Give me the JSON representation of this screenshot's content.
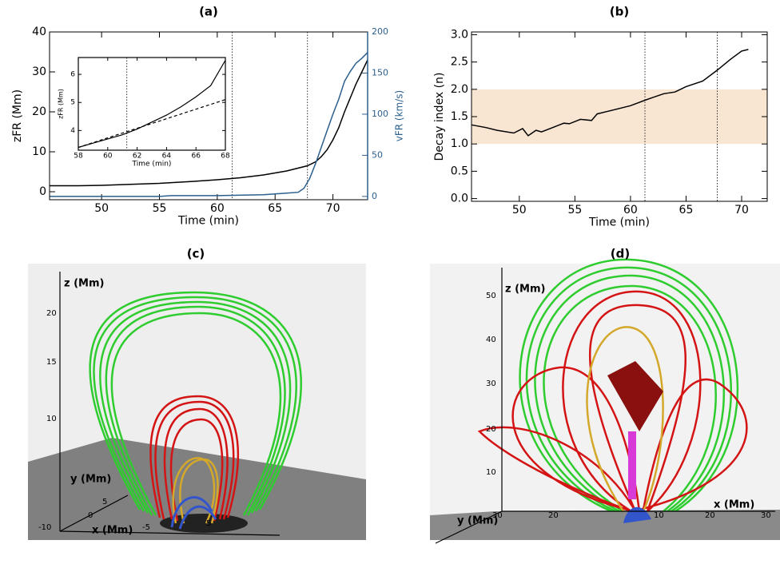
{
  "chart_data": [
    {
      "type": "line",
      "title": "(a)",
      "xlabel": "Time (min)",
      "ylabel": "zFR (Mm)",
      "y2label": "vFR (km/s)",
      "y2color": "#2b5f8e",
      "xlim": [
        45.5,
        73
      ],
      "ylim": [
        -2,
        40
      ],
      "y2lim": [
        -4,
        200
      ],
      "xticks": [
        50,
        55,
        60,
        65,
        70
      ],
      "yticks": [
        0,
        10,
        20,
        30,
        40
      ],
      "y2ticks": [
        0,
        50,
        100,
        150,
        200
      ],
      "vlines": [
        61.3,
        67.8
      ],
      "series": [
        {
          "color": "#000000",
          "x": [
            45.5,
            48,
            50,
            52,
            55,
            58,
            60,
            62,
            64,
            66,
            67.8,
            68.5,
            69,
            69.5,
            70,
            70.5,
            71,
            71.5,
            72,
            72.5,
            73
          ],
          "values": [
            1.5,
            1.5,
            1.6,
            1.8,
            2.1,
            2.6,
            3.0,
            3.5,
            4.2,
            5.2,
            6.5,
            7.5,
            8.8,
            10.5,
            13,
            16,
            20,
            23.5,
            27,
            30,
            33
          ]
        },
        {
          "color": "#2b5f8e",
          "axis": "y2",
          "x": [
            45.5,
            50,
            55,
            56,
            60,
            64,
            66,
            67,
            67.5,
            68,
            68.5,
            69,
            69.5,
            70,
            70.5,
            71,
            71.5,
            72,
            72.5,
            73
          ],
          "values": [
            0,
            0,
            0,
            1,
            1,
            2,
            4,
            5,
            10,
            22,
            40,
            60,
            80,
            100,
            118,
            140,
            152,
            162,
            168,
            175
          ]
        }
      ]
    },
    {
      "type": "line",
      "xlabel": "Time (min)",
      "ylabel": "zFR (Mm)",
      "xlim": [
        58,
        68
      ],
      "ylim": [
        3.3,
        6.6
      ],
      "xticks": [
        58,
        60,
        62,
        64,
        66,
        68
      ],
      "yticks": [
        4,
        5,
        6
      ],
      "vlines": [
        61.3
      ],
      "series": [
        {
          "color": "#000000",
          "x": [
            58,
            59,
            60,
            61,
            62,
            63,
            64,
            65,
            66,
            67,
            68
          ],
          "values": [
            3.4,
            3.55,
            3.7,
            3.85,
            4.05,
            4.3,
            4.55,
            4.85,
            5.2,
            5.6,
            6.5
          ]
        },
        {
          "color": "#000000",
          "style": "dashed",
          "x": [
            58,
            68
          ],
          "values": [
            3.4,
            5.1
          ]
        }
      ]
    },
    {
      "type": "line",
      "title": "(b)",
      "xlabel": "Time (min)",
      "ylabel": "Decay index (n)",
      "xlim": [
        45.7,
        72.3
      ],
      "ylim": [
        -0.05,
        3.05
      ],
      "xticks": [
        50,
        55,
        60,
        65,
        70
      ],
      "yticks": [
        {
          "value": 0,
          "label": "0.0"
        },
        {
          "value": 0.5,
          "label": "0.5"
        },
        {
          "value": 1,
          "label": "1.0"
        },
        {
          "value": 1.5,
          "label": "1.5"
        },
        {
          "value": 2,
          "label": "2.0"
        },
        {
          "value": 2.5,
          "label": "2.5"
        },
        {
          "value": 3,
          "label": "3.0"
        }
      ],
      "shaded_range": [
        1.0,
        2.0
      ],
      "shaded_color": "#f9e6d2",
      "vlines": [
        61.3,
        67.8
      ],
      "series": [
        {
          "color": "#000000",
          "x": [
            45.7,
            47,
            48,
            49.5,
            50.3,
            50.8,
            51.5,
            52,
            53,
            54,
            54.5,
            55.5,
            56.5,
            57,
            58,
            60,
            61.3,
            62,
            63,
            64,
            65,
            66.5,
            67.8,
            69,
            70,
            70.6
          ],
          "values": [
            1.35,
            1.3,
            1.25,
            1.2,
            1.28,
            1.15,
            1.25,
            1.22,
            1.3,
            1.38,
            1.37,
            1.45,
            1.43,
            1.55,
            1.6,
            1.7,
            1.8,
            1.85,
            1.92,
            1.95,
            2.05,
            2.15,
            2.35,
            2.55,
            2.7,
            2.73
          ]
        }
      ]
    }
  ],
  "panels": {
    "c": {
      "title": "(c)",
      "zlabel": "z (Mm)",
      "ylabel": "y (Mm)",
      "xlabel": "x (Mm)",
      "zticks": [
        20,
        15,
        10
      ],
      "yticks": [
        5,
        0,
        -10
      ],
      "xticks": [
        -5,
        5
      ]
    },
    "d": {
      "title": "(d)",
      "zlabel": "z (Mm)",
      "ylabel": "y (Mm)",
      "xlabel": "x (Mm)",
      "zticks": [
        50,
        40,
        30,
        20,
        10
      ],
      "xticks": [
        30,
        20,
        10,
        20,
        30
      ]
    }
  }
}
